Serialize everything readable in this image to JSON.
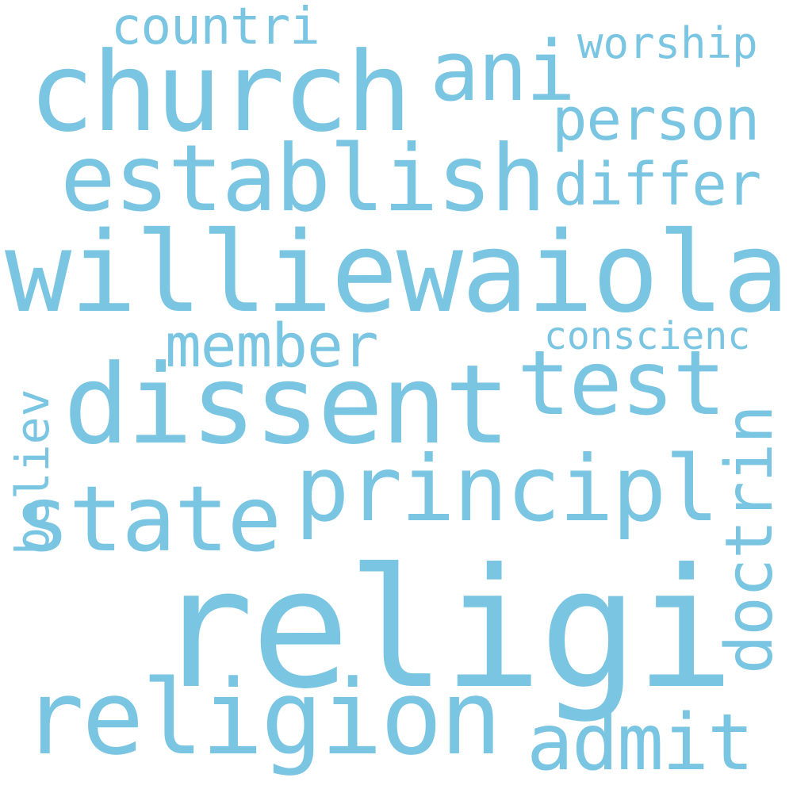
{
  "theme": {
    "background": "#ffffff",
    "word_color": "#7ac5e2"
  },
  "words": {
    "religi": "religi",
    "williewaiola": "williewaiola",
    "dissent": "dissent",
    "church": "church",
    "religion": "religion",
    "establish": "establish",
    "principl": "principl",
    "state": "state",
    "test": "test",
    "ani": "ani",
    "admit": "admit",
    "member": "member",
    "person": "person",
    "differ": "differ",
    "countri": "countri",
    "worship": "worship",
    "conscienc": "conscienc",
    "doctrin": "doctrin",
    "believ": "believ"
  }
}
